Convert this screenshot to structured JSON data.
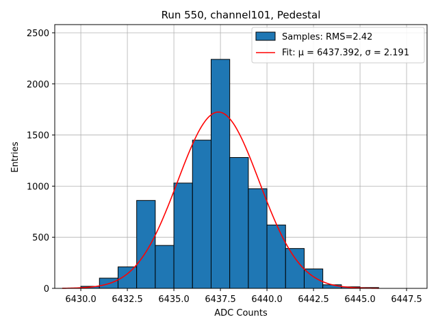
{
  "chart_data": {
    "type": "bar",
    "title": "Run 550, channel101, Pedestal",
    "xlabel": "ADC Counts",
    "ylabel": "Entries",
    "xlim": [
      6428.6,
      6448.6
    ],
    "ylim": [
      0,
      2580
    ],
    "xticks": [
      6430.0,
      6432.5,
      6435.0,
      6437.5,
      6440.0,
      6442.5,
      6445.0,
      6447.5
    ],
    "xtick_labels": [
      "6430.0",
      "6432.5",
      "6435.0",
      "6437.5",
      "6440.0",
      "6442.5",
      "6445.0",
      "6447.5"
    ],
    "yticks": [
      0,
      500,
      1000,
      1500,
      2000,
      2500
    ],
    "ytick_labels": [
      "0",
      "500",
      "1000",
      "1500",
      "2000",
      "2500"
    ],
    "grid": true,
    "legend_position": "top-right",
    "bin_edges": [
      6430.0,
      6431.0,
      6432.0,
      6433.0,
      6434.0,
      6435.0,
      6436.0,
      6437.0,
      6438.0,
      6439.0,
      6440.0,
      6441.0,
      6442.0,
      6443.0,
      6444.0,
      6445.0,
      6446.0
    ],
    "series": [
      {
        "name": "Samples: RMS=2.42",
        "kind": "histogram",
        "color": "#1f77b4",
        "values": [
          20,
          100,
          210,
          860,
          420,
          1030,
          1450,
          2240,
          1280,
          975,
          620,
          390,
          190,
          35,
          15,
          8
        ]
      },
      {
        "name": "Fit: μ = 6437.392, σ = 2.191",
        "kind": "gaussian-fit",
        "color": "#ff0000",
        "mu": 6437.392,
        "sigma": 2.191,
        "amplitude": 1725,
        "x_range": [
          6429.0,
          6446.0
        ]
      }
    ]
  }
}
